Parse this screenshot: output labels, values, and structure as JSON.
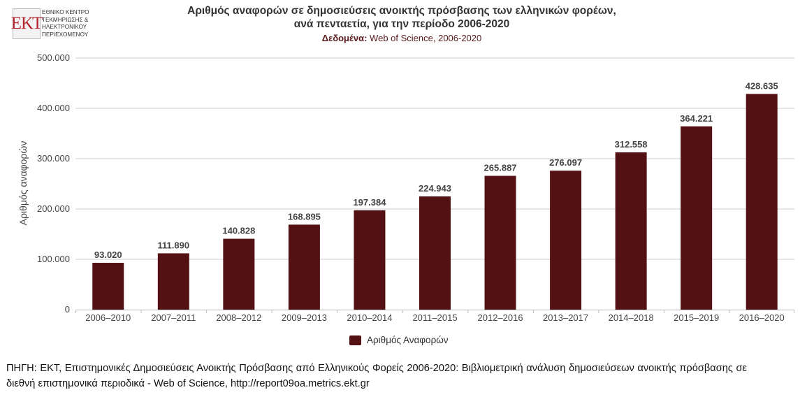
{
  "logo": {
    "mark": "ΕΚΤ",
    "text": "ΕΘΝΙΚΟ ΚΕΝΤΡΟ\nΤΕΚΜΗΡΙΩΣΗΣ &\nΗΛΕΚΤΡΟΝΙΚΟΥ\nΠΕΡΙΕΧΟΜΕΝΟΥ"
  },
  "header": {
    "title_line1": "Αριθμός αναφορών σε δημοσιεύσεις ανοικτής πρόσβασης των ελληνικών φορέων,",
    "title_line2": "ανά πενταετία, για την περίοδο 2006-2020",
    "subtitle_label": "Δεδομένα:",
    "subtitle_text": " Web of Science, 2006-2020"
  },
  "chart_data": {
    "type": "bar",
    "categories": [
      "2006–2010",
      "2007–2011",
      "2008–2012",
      "2009–2013",
      "2010–2014",
      "2011–2015",
      "2012–2016",
      "2013–2017",
      "2014–2018",
      "2015–2019",
      "2016–2020"
    ],
    "series": [
      {
        "name": "Αριθμός Αναφορών",
        "values": [
          93020,
          111890,
          140828,
          168895,
          197384,
          224943,
          265887,
          276097,
          312558,
          364221,
          428635
        ],
        "labels": [
          "93.020",
          "111.890",
          "140.828",
          "168.895",
          "197.384",
          "224.943",
          "265.887",
          "276.097",
          "312.558",
          "364.221",
          "428.635"
        ]
      }
    ],
    "ylabel": "Αριθμός αναφορών",
    "xlabel": "",
    "ylim": [
      0,
      500000
    ],
    "yticks": [
      0,
      100000,
      200000,
      300000,
      400000,
      500000
    ],
    "ytick_labels": [
      "0",
      "100.000",
      "200.000",
      "300.000",
      "400.000",
      "500.000"
    ],
    "grid": true,
    "legend_position": "bottom-center",
    "bar_color": "#541113"
  },
  "legend": {
    "label": "Αριθμός Αναφορών"
  },
  "source": {
    "text": "ΠΗΓΗ: ΕΚΤ, Επιστημονικές Δημοσιεύσεις Ανοικτής Πρόσβασης από Ελληνικούς Φορείς 2006-2020: Βιβλιομετρική ανάλυση δημοσιεύσεων ανοικτής πρόσβασης σε διεθνή επιστημονικά περιοδικά - Web of Science, http://report09oa.metrics.ekt.gr"
  }
}
